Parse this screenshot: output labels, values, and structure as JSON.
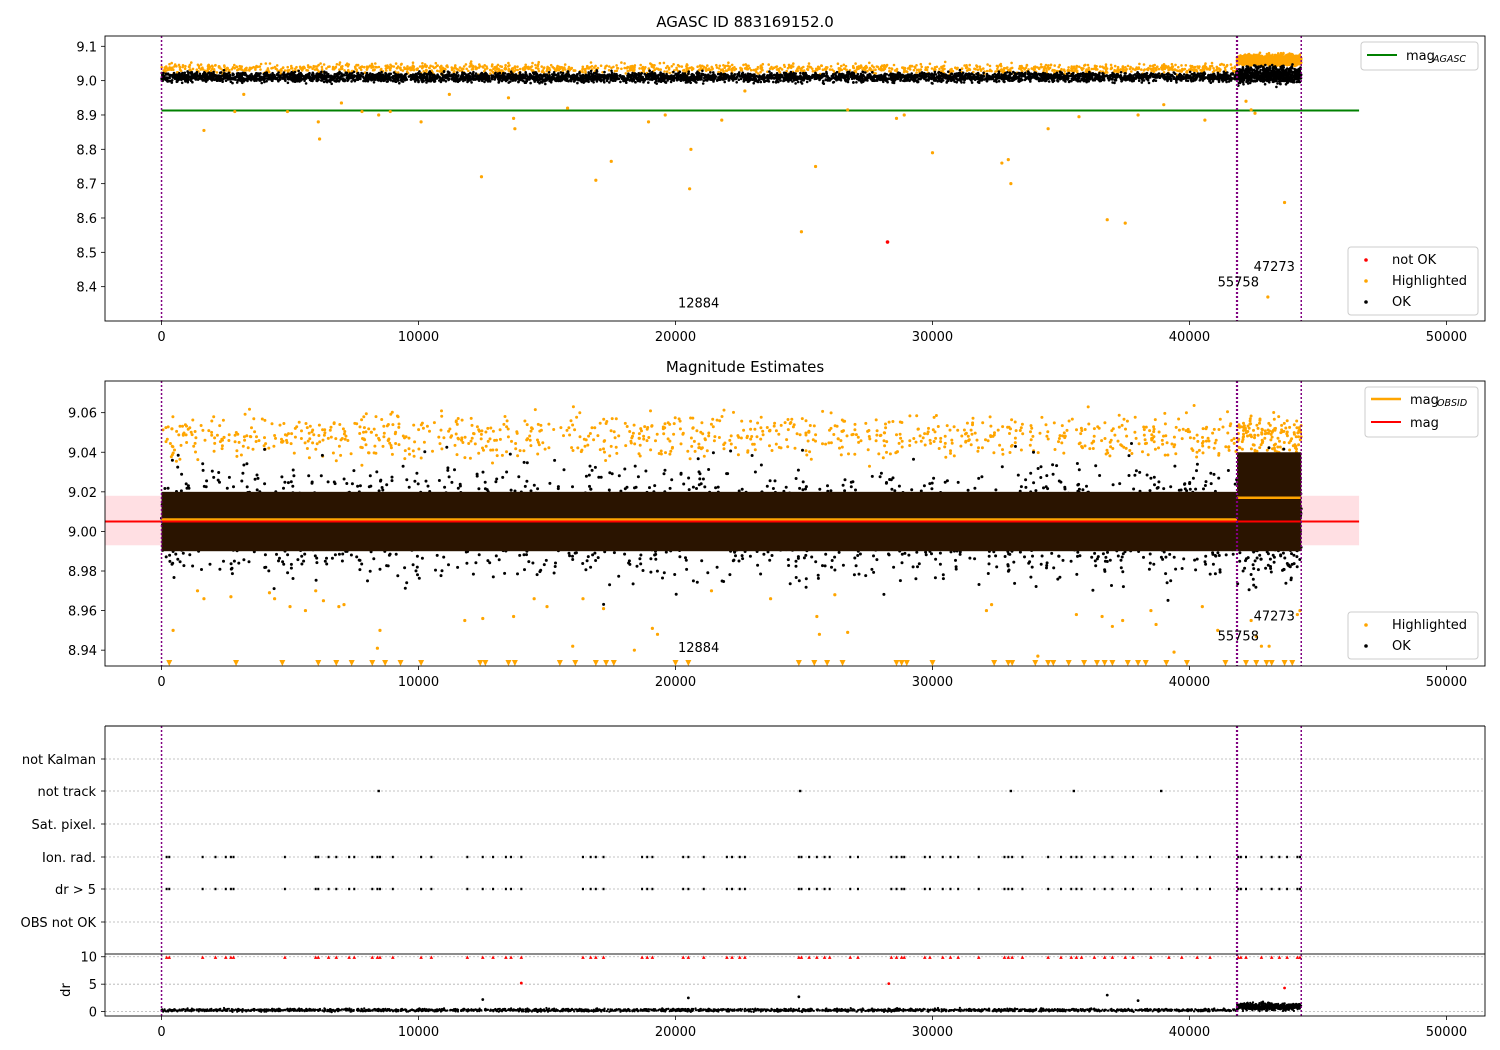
{
  "chart_data": [
    {
      "type": "scatter",
      "title": "AGASC ID 883169152.0",
      "xlim": [
        -2200,
        51500
      ],
      "ylim": [
        8.3,
        9.13
      ],
      "xticks": [
        0,
        10000,
        20000,
        30000,
        40000,
        50000
      ],
      "yticks": [
        8.4,
        8.5,
        8.6,
        8.7,
        8.8,
        8.9,
        9.0,
        9.1
      ],
      "vlines": [
        0,
        41850,
        44350
      ],
      "obsid_labels": [
        {
          "text": "12884",
          "x": 20900,
          "y": 8.34
        },
        {
          "text": "55758",
          "x": 41900,
          "y": 8.4
        },
        {
          "text": "47273",
          "x": 43300,
          "y": 8.445
        }
      ],
      "lines": [
        {
          "name": "mag_AGASC",
          "color": "#008000",
          "y": 8.913,
          "x": [
            0,
            46600
          ]
        }
      ],
      "bands": [
        {
          "x0": 0,
          "x1": 41850,
          "ylo": 8.985,
          "yhi": 9.035
        },
        {
          "x0": 41850,
          "x1": 44350,
          "ylo": 8.975,
          "yhi": 9.06
        }
      ],
      "outliers": [
        [
          1650,
          8.855
        ],
        [
          2850,
          8.91
        ],
        [
          4900,
          8.91
        ],
        [
          6100,
          8.88
        ],
        [
          6150,
          8.83
        ],
        [
          7000,
          8.935
        ],
        [
          7800,
          8.91
        ],
        [
          8450,
          8.9
        ],
        [
          8900,
          8.91
        ],
        [
          10100,
          8.88
        ],
        [
          12450,
          8.72
        ],
        [
          13500,
          8.95
        ],
        [
          13700,
          8.89
        ],
        [
          13750,
          8.86
        ],
        [
          15800,
          8.92
        ],
        [
          16900,
          8.71
        ],
        [
          17500,
          8.765
        ],
        [
          18950,
          8.88
        ],
        [
          19600,
          8.9
        ],
        [
          20550,
          8.685
        ],
        [
          20600,
          8.8
        ],
        [
          21800,
          8.885
        ],
        [
          24900,
          8.56
        ],
        [
          25450,
          8.75
        ],
        [
          26700,
          8.915
        ],
        [
          28600,
          8.89
        ],
        [
          28900,
          8.9
        ],
        [
          30000,
          8.79
        ],
        [
          32700,
          8.76
        ],
        [
          32950,
          8.77
        ],
        [
          33050,
          8.7
        ],
        [
          34500,
          8.86
        ],
        [
          35700,
          8.895
        ],
        [
          36800,
          8.595
        ],
        [
          37500,
          8.585
        ],
        [
          38000,
          8.9
        ],
        [
          39000,
          8.93
        ],
        [
          40600,
          8.885
        ],
        [
          42200,
          8.94
        ],
        [
          42400,
          8.915
        ],
        [
          42550,
          8.905
        ],
        [
          43050,
          8.37
        ],
        [
          43700,
          8.645
        ],
        [
          11200,
          8.96
        ],
        [
          3200,
          8.96
        ],
        [
          22700,
          8.97
        ]
      ],
      "not_ok_points": [
        [
          28250,
          8.53
        ]
      ],
      "legend_lines": [
        "mag_AGASC"
      ],
      "legend_points": [
        "not OK",
        "Highlighted",
        "OK"
      ]
    },
    {
      "type": "scatter",
      "title": "Magnitude Estimates",
      "xlim": [
        -2200,
        51500
      ],
      "ylim": [
        8.932,
        9.076
      ],
      "xticks": [
        0,
        10000,
        20000,
        30000,
        40000,
        50000
      ],
      "yticks": [
        8.94,
        8.96,
        8.98,
        9.0,
        9.02,
        9.04,
        9.06
      ],
      "vlines": [
        0,
        41850,
        44350
      ],
      "obsid_labels": [
        {
          "text": "12884",
          "x": 20900,
          "y": 8.939
        },
        {
          "text": "55758",
          "x": 41900,
          "y": 8.945
        },
        {
          "text": "47273",
          "x": 43300,
          "y": 8.955
        }
      ],
      "lines": [
        {
          "name": "mag_OBSID",
          "color": "#ffa500",
          "segments": [
            [
              0,
              41850,
              9.006
            ],
            [
              41850,
              44350,
              9.017
            ]
          ]
        },
        {
          "name": "mag",
          "color": "#ff0000",
          "y": 9.005,
          "x": [
            -2200,
            46600
          ],
          "band": [
            8.993,
            9.018
          ]
        }
      ],
      "bands": [
        {
          "x0": 0,
          "x1": 41850,
          "ylo": 8.99,
          "yhi": 9.02
        },
        {
          "x0": 41850,
          "x1": 44350,
          "ylo": 8.99,
          "yhi": 9.04
        }
      ],
      "lower_limit_markers_x": [
        300,
        2900,
        4700,
        6100,
        6800,
        7400,
        8200,
        8700,
        9300,
        10100,
        12400,
        12600,
        13500,
        13750,
        15500,
        16100,
        16900,
        17300,
        17600,
        20000,
        20500,
        24800,
        25400,
        25900,
        26500,
        28600,
        28800,
        29000,
        30000,
        32400,
        32950,
        33100,
        34000,
        34500,
        34700,
        35300,
        35900,
        36400,
        36700,
        37000,
        37600,
        38000,
        38300,
        39100,
        39900,
        41400,
        42200,
        42600,
        43000,
        43200,
        43700,
        44000
      ],
      "low_points": [
        [
          450,
          8.95
        ],
        [
          1400,
          8.97
        ],
        [
          1650,
          8.966
        ],
        [
          2700,
          8.967
        ],
        [
          4200,
          8.969
        ],
        [
          4400,
          8.966
        ],
        [
          5000,
          8.962
        ],
        [
          5600,
          8.96
        ],
        [
          6000,
          8.97
        ],
        [
          6300,
          8.965
        ],
        [
          6900,
          8.962
        ],
        [
          7100,
          8.963
        ],
        [
          8400,
          8.941
        ],
        [
          8500,
          8.95
        ],
        [
          11800,
          8.955
        ],
        [
          12500,
          8.956
        ],
        [
          13700,
          8.957
        ],
        [
          14500,
          8.966
        ],
        [
          15000,
          8.962
        ],
        [
          16000,
          8.942
        ],
        [
          16400,
          8.966
        ],
        [
          17200,
          8.961
        ],
        [
          18400,
          8.94
        ],
        [
          19100,
          8.951
        ],
        [
          19300,
          8.948
        ],
        [
          21400,
          8.97
        ],
        [
          23700,
          8.966
        ],
        [
          25500,
          8.957
        ],
        [
          25600,
          8.948
        ],
        [
          26200,
          8.968
        ],
        [
          26700,
          8.949
        ],
        [
          32100,
          8.96
        ],
        [
          32300,
          8.963
        ],
        [
          34100,
          8.937
        ],
        [
          35600,
          8.958
        ],
        [
          36600,
          8.957
        ],
        [
          37000,
          8.952
        ],
        [
          37400,
          8.955
        ],
        [
          38500,
          8.96
        ],
        [
          38700,
          8.953
        ],
        [
          39400,
          8.939
        ],
        [
          40500,
          8.962
        ],
        [
          41100,
          8.95
        ],
        [
          42400,
          8.955
        ],
        [
          42600,
          8.947
        ],
        [
          42800,
          8.942
        ],
        [
          43100,
          8.942
        ],
        [
          44200,
          8.958
        ],
        [
          44300,
          8.96
        ]
      ],
      "legend_lines": [
        "mag_OBSID",
        "mag"
      ],
      "legend_points": [
        "Highlighted",
        "OK"
      ]
    },
    {
      "type": "scatter",
      "xlim": [
        -2200,
        51500
      ],
      "xticks": [
        0,
        10000,
        20000,
        30000,
        40000,
        50000
      ],
      "flag_labels": [
        "not Kalman",
        "not track",
        "Sat. pixel.",
        "Ion. rad.",
        "dr > 5",
        "OBS not OK"
      ],
      "dr_ylabel": "dr",
      "dr_ylim": [
        -0.8,
        10.5
      ],
      "dr_yticks": [
        0,
        5,
        10
      ],
      "vlines": [
        0,
        41850,
        44350
      ],
      "not_track_x": [
        8450,
        24850,
        33050,
        35500,
        38900
      ],
      "flag_event_x": [
        200,
        300,
        1600,
        2100,
        2500,
        2700,
        2800,
        4800,
        6000,
        6100,
        6500,
        6800,
        7300,
        7500,
        8200,
        8400,
        8500,
        9000,
        10100,
        10500,
        11900,
        12500,
        12900,
        13400,
        13600,
        14000,
        16400,
        16700,
        16900,
        17200,
        18700,
        18900,
        19100,
        20300,
        20500,
        21100,
        22000,
        22200,
        22500,
        22700,
        24800,
        24900,
        25200,
        25500,
        25800,
        26000,
        26800,
        27100,
        28400,
        28600,
        28800,
        28900,
        29700,
        29900,
        30400,
        30700,
        31000,
        31800,
        32800,
        32950,
        33100,
        33500,
        34500,
        35000,
        35400,
        35600,
        35800,
        36300,
        36700,
        37000,
        37500,
        37800,
        38500,
        39200,
        39700,
        40300,
        40800,
        41900,
        42000,
        42200,
        42800,
        43200,
        43500,
        43800,
        44200,
        44300
      ],
      "dr_mid_points": [
        [
          14000,
          5.2
        ],
        [
          28300,
          5.1
        ],
        [
          36800,
          3.0
        ],
        [
          43700,
          4.3
        ],
        [
          12500,
          2.2
        ],
        [
          20500,
          2.5
        ],
        [
          24800,
          2.7
        ],
        [
          38000,
          2.0
        ]
      ]
    }
  ],
  "legend_labels": {
    "mag_AGASC": "mag",
    "mag_AGASC_sub": "AGASC",
    "mag_OBSID": "mag",
    "mag_OBSID_sub": "OBSID",
    "mag": "mag",
    "not_ok": "not OK",
    "highlighted": "Highlighted",
    "ok": "OK"
  },
  "colors": {
    "ok": "#000000",
    "highlighted": "#ffa500",
    "not_ok": "#ff0000",
    "mag_agasc": "#008000",
    "mag_obsid": "#ffa500",
    "mag": "#ff0000",
    "vline": "#800080",
    "band_dark": "#2a1400",
    "mag_band": "#ffc0c8"
  }
}
